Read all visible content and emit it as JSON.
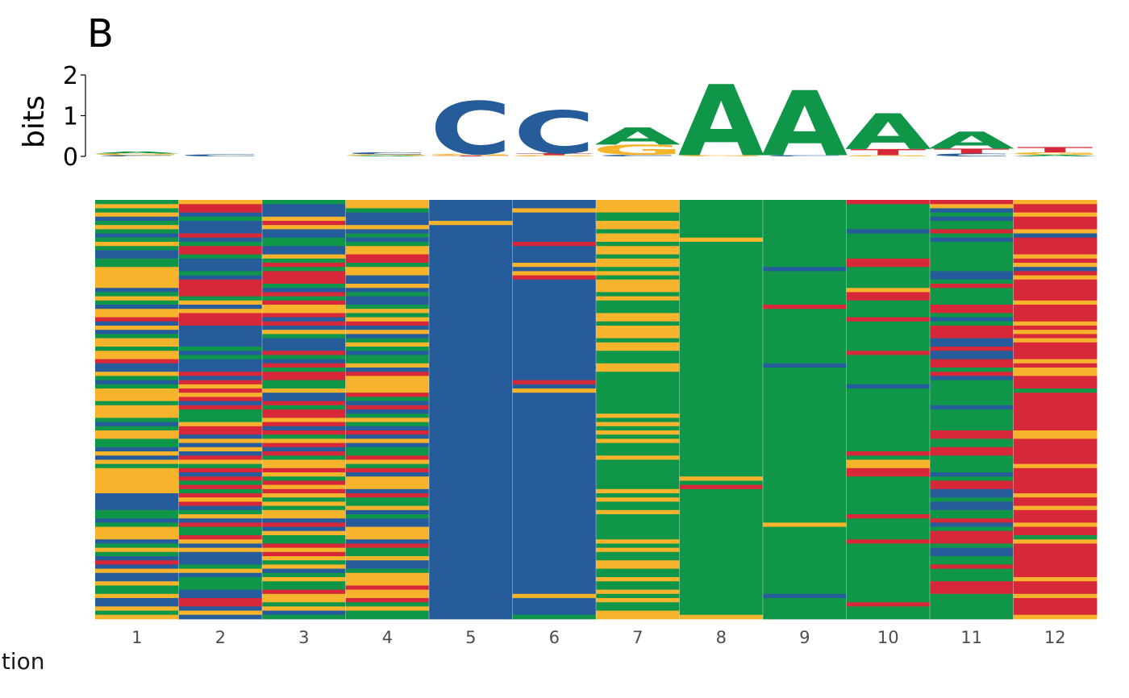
{
  "panel_label": "B",
  "chart_data": [
    {
      "type": "sequence-logo",
      "ylabel": "bits",
      "ylim": [
        0,
        2
      ],
      "yticks": [
        "0",
        "1",
        "2"
      ],
      "positions": [
        1,
        2,
        3,
        4,
        5,
        6,
        7,
        8,
        9,
        10,
        11,
        12
      ],
      "letter_colors": {
        "A": "#109648",
        "C": "#255C99",
        "G": "#F7B32B",
        "T": "#D62839"
      },
      "stacks": [
        [
          {
            "letter": "C",
            "bits": 0.03
          },
          {
            "letter": "G",
            "bits": 0.04
          },
          {
            "letter": "A",
            "bits": 0.05
          }
        ],
        [
          {
            "letter": "C",
            "bits": 0.05
          }
        ],
        [],
        [
          {
            "letter": "A",
            "bits": 0.02
          },
          {
            "letter": "G",
            "bits": 0.03
          },
          {
            "letter": "C",
            "bits": 0.05
          }
        ],
        [
          {
            "letter": "T",
            "bits": 0.02
          },
          {
            "letter": "G",
            "bits": 0.04
          },
          {
            "letter": "C",
            "bits": 1.3
          }
        ],
        [
          {
            "letter": "G",
            "bits": 0.03
          },
          {
            "letter": "T",
            "bits": 0.05
          },
          {
            "letter": "C",
            "bits": 1.05
          }
        ],
        [
          {
            "letter": "C",
            "bits": 0.04
          },
          {
            "letter": "G",
            "bits": 0.25
          },
          {
            "letter": "A",
            "bits": 0.42
          }
        ],
        [
          {
            "letter": "G",
            "bits": 0.03
          },
          {
            "letter": "A",
            "bits": 1.75
          }
        ],
        [
          {
            "letter": "C",
            "bits": 0.03
          },
          {
            "letter": "A",
            "bits": 1.6
          }
        ],
        [
          {
            "letter": "G",
            "bits": 0.03
          },
          {
            "letter": "T",
            "bits": 0.15
          },
          {
            "letter": "A",
            "bits": 0.88
          }
        ],
        [
          {
            "letter": "C",
            "bits": 0.07
          },
          {
            "letter": "T",
            "bits": 0.12
          },
          {
            "letter": "A",
            "bits": 0.42
          }
        ],
        [
          {
            "letter": "A",
            "bits": 0.04
          },
          {
            "letter": "G",
            "bits": 0.06
          },
          {
            "letter": "T",
            "bits": 0.13
          }
        ]
      ]
    },
    {
      "type": "heatmap",
      "xlabel": "position",
      "x": [
        "1",
        "2",
        "3",
        "4",
        "5",
        "6",
        "7",
        "8",
        "9",
        "10",
        "11",
        "12"
      ],
      "colors": {
        "A": "#109648",
        "C": "#255C99",
        "G": "#F7B32B",
        "T": "#D62839"
      },
      "rows": 100,
      "columns": [
        "AGAGCAGACAGACCAAGGGGGCAGACGGTCGCAGGAGGTCCGACAGGGAGGGACAGGAACGCGAGGGGGGCCCCAACAGGGCAGACTCGCCGAAGCCGAG",
        "GTTCACCCTCATTACCCACTTTTAGCGTTTCCCCCACACCCTCTGTGTCTAAAGTTCGCGCTGATCTATATGTCAGCTAATGCGCCCAGCAAACCTTCGC",
        "ACCCGTGCCAACCGATATTTACTATGGTCTCGACCCTACTATTAAGCCTATTGTCTAGTCTAGGTGATGTGAGAGGCTCGAATGTGAGCAGAATGGAGC",
        "GGACCCGCACAGGTTAGGCCGCACCAGAGTCGCAGACAAGCTGGGGTACTCAGACTCGCAATGATCGGGCTAAGCACCGGGCTAAGCCAGGGTGGTAG",
        "CCCCCGCCCCCCCCCCCCCCCCCCCCCCCCCCCCCCCCCCCCCCCCCCCCCCCCCCCCCCCCCCCCCCCCCCCCCCCCCCCCCCCCCCCCCCCCCCCCCC",
        "CCGCCCCCCCTCCCCGCGTCCCCCCCCCCCCCCCCCCCCCCCCTCGCCCCCCCCCCCCCCCCCCCCCCCCCCCCCCCCCCCCCCCCCCCCCCCCGCCCC",
        "GGGAAGGAGGAGGAGGAGAGGGAGAAAGGAGGGAGGAAAGGAAAAAAAAAAGAGAGAGAAAGAAAAAAAGAGAAGAAAAAAGAGAAGGAAGAAGAGAAGG",
        "AAAAAAAAAGAAAAAAAAAAAAAAAAAAAAAAAAAAAAAAAAAAAAAAAAAAAAAAAAAAAAAAAAGATAAAAAAAAAAAAAAAAAAAAAAAAAAAAAAG",
        "AAAAAAAAAAAAAAAACAAAAAAAATAAAAAAAAAAAAACAAAAAAAAAAAAAAAAAAAAAAAAAAAAAAAAAAAAAGAAAAAAAAAAAAAAAACAAAAA",
        "TAAAAAACAAAAAATTAAAAAGTTAAAATAAAAAAATAAAAAAACAAAAAAAAAAAAAAATAGGTTAAAAAAAAATAAAAATAAAAAAAAAAAAAATAAA",
        "TGCACAATACAAAAAAACCATAAAATTACATTTCCTCCTTATCAAAAAACAAAAATTAATTAAAACATTCCACCAATCATTTACCAATAAATTTAAAAAA",
        "GTTGTTTGCTTTTGTGCTGTTTTTGTTTTGTGTGTTTTGTGGTTTATTTTTTTTTGGTTTTTTGTTTTTTGTTGTTTGTTAGTTTTTTTTGTTTGTTTTG"
      ]
    }
  ]
}
